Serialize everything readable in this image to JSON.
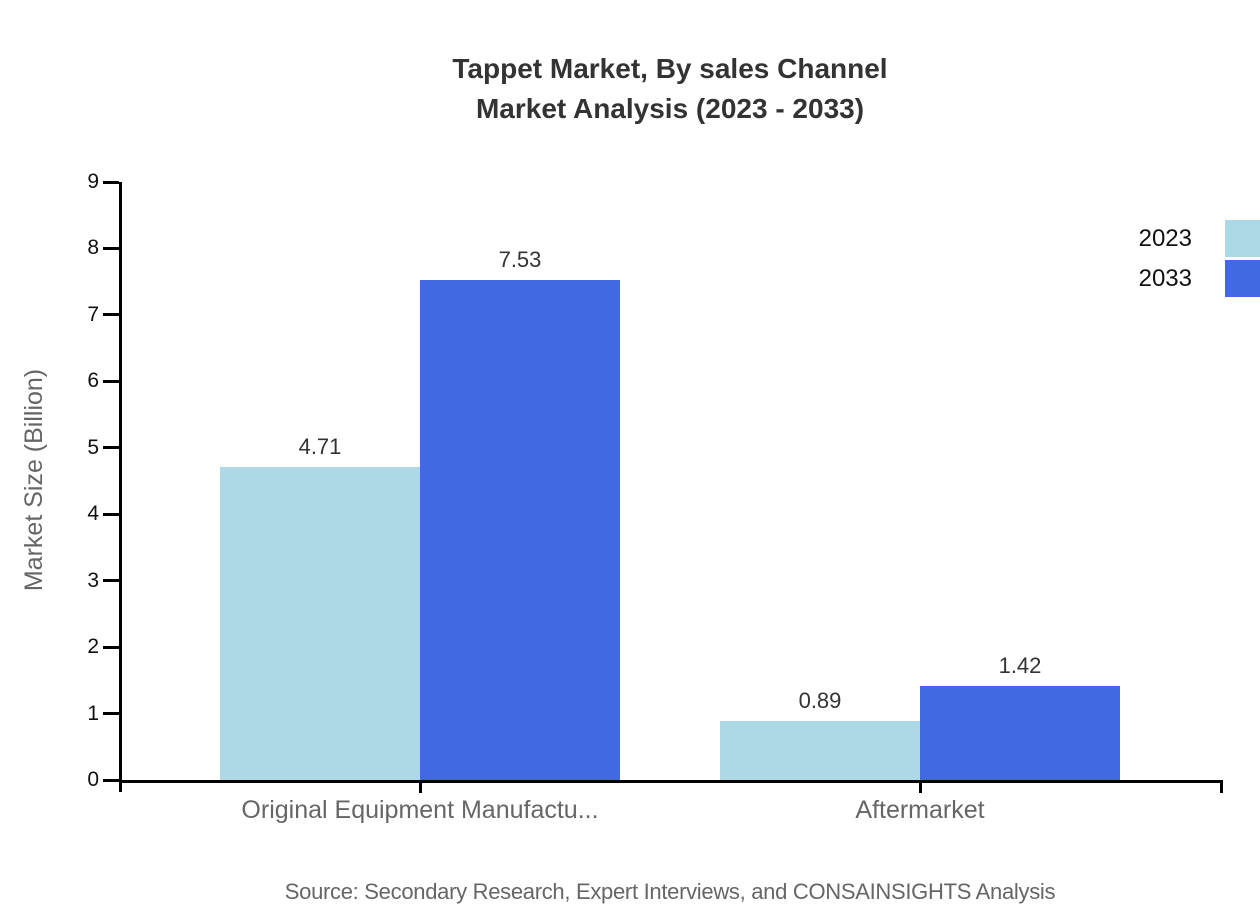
{
  "title": {
    "line1": "Tappet Market, By sales Channel",
    "line2": "Market Analysis (2023 - 2033)"
  },
  "chart_data": {
    "type": "bar",
    "categories": [
      "Original Equipment Manufactu...",
      "Aftermarket"
    ],
    "series": [
      {
        "name": "2023",
        "color": "#ADD8E6",
        "values": [
          4.71,
          0.89
        ]
      },
      {
        "name": "2033",
        "color": "#4169E1",
        "values": [
          7.53,
          1.42
        ]
      }
    ],
    "title": "Tappet Market, By sales Channel Market Analysis (2023 - 2033)",
    "xlabel": "",
    "ylabel": "Market Size (Billion)",
    "ylim": [
      0,
      9
    ],
    "yticks": [
      0,
      1,
      2,
      3,
      4,
      5,
      6,
      7,
      8,
      9
    ],
    "grid": false,
    "legend_position": "top-right",
    "value_labels": true
  },
  "source": {
    "text": "Source: Secondary Research, Expert Interviews, and CONSAINSIGHTS Analysis"
  },
  "colors": {
    "axis": "#000000",
    "title_text": "#333333",
    "muted_text": "#666666",
    "tick_text": "#111111",
    "series_2023": "#ADD8E6",
    "series_2033": "#4169E1",
    "background": "#ffffff"
  }
}
